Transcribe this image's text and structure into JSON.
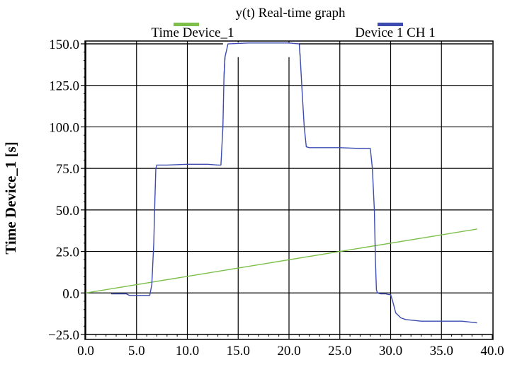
{
  "chart_data": {
    "type": "line",
    "title": "y(t) Real-time graph",
    "ylabel": "Time Device_1 [s]",
    "xlabel": "",
    "xlim": [
      0,
      40
    ],
    "ylim": [
      -25,
      150
    ],
    "x_ticks": [
      0,
      5,
      10,
      15,
      20,
      25,
      30,
      35,
      40
    ],
    "x_tick_labels": [
      "0.0",
      "5.0",
      "10.0",
      "15.0",
      "20.0",
      "25.0",
      "30.0",
      "35.0",
      "40.0"
    ],
    "y_ticks": [
      -25,
      0,
      25,
      50,
      75,
      100,
      125,
      150
    ],
    "y_tick_labels": [
      "−25.0",
      "0.0",
      "25.0",
      "50.0",
      "75.0",
      "100.0",
      "125.0",
      "150.0"
    ],
    "grid": true,
    "legend_position": "top",
    "series": [
      {
        "name": "Time Device_1",
        "color": "#7cc04a",
        "x": [
          0,
          38.5
        ],
        "y": [
          0,
          38.5
        ]
      },
      {
        "name": "Device 1 CH 1",
        "color": "#3b4bb0",
        "x": [
          2.5,
          4.0,
          4.3,
          5.0,
          6.0,
          6.3,
          6.5,
          6.7,
          6.8,
          6.9,
          7.0,
          8.0,
          10.0,
          12.0,
          13.0,
          13.3,
          13.5,
          13.6,
          13.7,
          14.0,
          16.0,
          18.0,
          20.0,
          21.0,
          21.1,
          21.3,
          21.5,
          21.7,
          22.0,
          25.0,
          27.0,
          28.0,
          28.2,
          28.4,
          28.5,
          28.6,
          28.7,
          29.0,
          29.5,
          29.8,
          30.0,
          30.2,
          30.5,
          31.0,
          31.5,
          33.0,
          35.0,
          37.0,
          38.5
        ],
        "y": [
          -0.5,
          -0.5,
          -1.5,
          -1.5,
          -1.5,
          -1.5,
          5,
          30,
          55,
          75,
          77,
          77,
          77.5,
          77.5,
          77,
          77,
          100,
          130,
          142,
          150,
          150.5,
          150.5,
          150.5,
          150,
          142,
          120,
          100,
          88,
          87.5,
          87.5,
          87,
          87,
          75,
          50,
          20,
          2,
          0,
          -0.5,
          -0.5,
          -1,
          -1,
          -5,
          -12,
          -15,
          -16,
          -17,
          -17,
          -17,
          -18
        ]
      }
    ]
  }
}
